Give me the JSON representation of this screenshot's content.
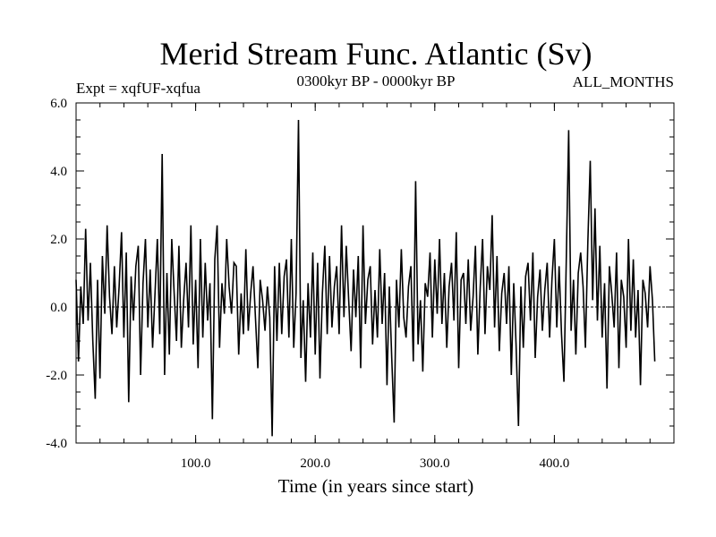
{
  "chart_data": {
    "type": "line",
    "title": "Merid Stream Func. Atlantic (Sv)",
    "subtitle_left": "Expt = xqfUF-xqfua",
    "subtitle_center": "0300kyr BP - 0000kyr BP",
    "subtitle_right": "ALL_MONTHS",
    "xlabel": "Time (in years since start)",
    "ylabel": "",
    "xlim": [
      0,
      500
    ],
    "ylim": [
      -4.0,
      6.0
    ],
    "x_ticks": [
      "100.0",
      "200.0",
      "300.0",
      "400.0"
    ],
    "y_ticks": [
      "6.0",
      "4.0",
      "2.0",
      "0.0",
      "-2.0",
      "-4.0"
    ],
    "zero_line": true,
    "series": [
      {
        "name": "Merid Stream Func. Atlantic",
        "x_start": 0,
        "x_step": 2,
        "values": [
          0.8,
          -1.6,
          0.6,
          -0.5,
          2.3,
          -0.4,
          1.3,
          -1.0,
          -2.7,
          0.8,
          -2.1,
          1.5,
          -0.2,
          2.4,
          0.3,
          -0.8,
          1.2,
          -0.6,
          0.6,
          2.2,
          -0.9,
          1.6,
          -2.8,
          0.9,
          -0.4,
          1.2,
          1.8,
          -2.0,
          0.7,
          2.0,
          -0.6,
          1.1,
          -1.2,
          0.4,
          2.0,
          -0.8,
          4.5,
          -2.0,
          1.0,
          -1.4,
          2.0,
          0.4,
          -1.0,
          1.8,
          -1.2,
          0.2,
          1.3,
          -0.6,
          2.4,
          -1.1,
          0.8,
          -1.8,
          2.0,
          -0.9,
          1.3,
          -0.4,
          0.7,
          -3.3,
          1.4,
          2.4,
          -1.2,
          0.7,
          -0.2,
          2.0,
          0.6,
          -0.2,
          1.3,
          1.2,
          -1.4,
          0.4,
          -0.8,
          1.7,
          -0.7,
          0.4,
          1.2,
          -0.3,
          -1.8,
          0.8,
          0.2,
          -0.7,
          0.6,
          -0.3,
          -3.8,
          1.2,
          -1.0,
          1.3,
          -0.8,
          0.9,
          1.4,
          -0.9,
          2.0,
          -1.2,
          0.4,
          5.5,
          -1.5,
          0.2,
          -2.2,
          0.7,
          -0.9,
          1.6,
          -1.4,
          1.3,
          -2.1,
          0.4,
          1.8,
          -0.8,
          1.5,
          -0.6,
          0.6,
          1.2,
          -0.8,
          2.4,
          -0.3,
          1.8,
          0.2,
          -1.3,
          1.1,
          -0.3,
          1.5,
          -1.8,
          2.4,
          -0.5,
          0.8,
          1.2,
          -1.1,
          0.5,
          -0.9,
          1.7,
          -0.5,
          1.0,
          -2.3,
          0.6,
          -1.5,
          -3.4,
          0.8,
          -0.6,
          1.7,
          -0.3,
          -0.9,
          0.6,
          1.2,
          -1.6,
          3.7,
          -1.1,
          0.2,
          -1.9,
          0.7,
          0.3,
          1.6,
          -0.9,
          1.4,
          -0.2,
          2.0,
          -0.5,
          1.0,
          -1.2,
          0.6,
          1.3,
          -0.4,
          2.2,
          -1.8,
          0.8,
          1.0,
          -0.5,
          1.4,
          -0.7,
          0.3,
          1.8,
          -1.4,
          0.6,
          2.0,
          -0.8,
          1.2,
          0.5,
          2.7,
          -0.6,
          1.5,
          -1.3,
          0.4,
          1.0,
          -0.5,
          1.2,
          -2.0,
          0.7,
          -1.1,
          -3.5,
          0.6,
          -1.2,
          0.9,
          1.3,
          -0.4,
          1.6,
          -1.5,
          0.3,
          1.1,
          -0.7,
          0.5,
          1.3,
          -0.9,
          0.8,
          2.0,
          -0.6,
          1.2,
          -0.8,
          -2.2,
          1.5,
          5.2,
          -0.7,
          0.8,
          -1.4,
          1.0,
          1.6,
          0.6,
          -1.2,
          1.9,
          4.3,
          0.2,
          2.9,
          -0.4,
          1.8,
          -0.9,
          0.7,
          -2.4,
          1.2,
          0.4,
          -0.6,
          1.6,
          -1.8,
          0.8,
          0.3,
          -1.2,
          2.0,
          -0.7,
          1.4,
          -0.9,
          0.5,
          -2.3,
          0.8,
          0.4,
          -0.6,
          1.2,
          0.2,
          -1.6
        ]
      }
    ]
  }
}
